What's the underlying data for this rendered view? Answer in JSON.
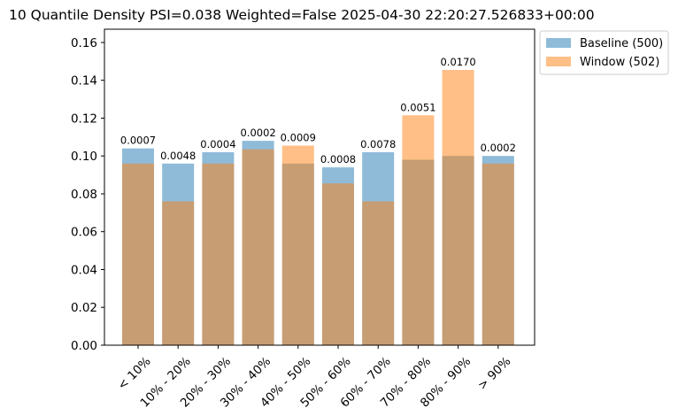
{
  "chart_data": {
    "type": "bar",
    "title": "10 Quantile Density PSI=0.038 Weighted=False 2025-04-30 22:20:27.526833+00:00",
    "xlabel": "",
    "ylabel": "",
    "ylim": [
      0,
      0.167
    ],
    "yticks": [
      0.0,
      0.02,
      0.04,
      0.06,
      0.08,
      0.1,
      0.12,
      0.14,
      0.16
    ],
    "ytick_labels": [
      "0.00",
      "0.02",
      "0.04",
      "0.06",
      "0.08",
      "0.10",
      "0.12",
      "0.14",
      "0.16"
    ],
    "categories": [
      "< 10%",
      "10% - 20%",
      "20% - 30%",
      "30% - 40%",
      "40% - 50%",
      "50% - 60%",
      "60% - 70%",
      "70% - 80%",
      "80% - 90%",
      "> 90%"
    ],
    "series": [
      {
        "name": "Baseline (500)",
        "color": "#1f77b4",
        "alpha": 0.5,
        "values": [
          0.104,
          0.096,
          0.102,
          0.108,
          0.096,
          0.094,
          0.102,
          0.098,
          0.1,
          0.1
        ]
      },
      {
        "name": "Window (502)",
        "color": "#ff7f0e",
        "alpha": 0.5,
        "values": [
          0.096,
          0.076,
          0.096,
          0.1035,
          0.1055,
          0.0855,
          0.076,
          0.1215,
          0.1455,
          0.096
        ]
      }
    ],
    "annotations": [
      "0.0007",
      "0.0048",
      "0.0004",
      "0.0002",
      "0.0009",
      "0.0008",
      "0.0078",
      "0.0051",
      "0.0170",
      "0.0002"
    ],
    "legend_placement": "outside-top-right",
    "grid": false
  }
}
